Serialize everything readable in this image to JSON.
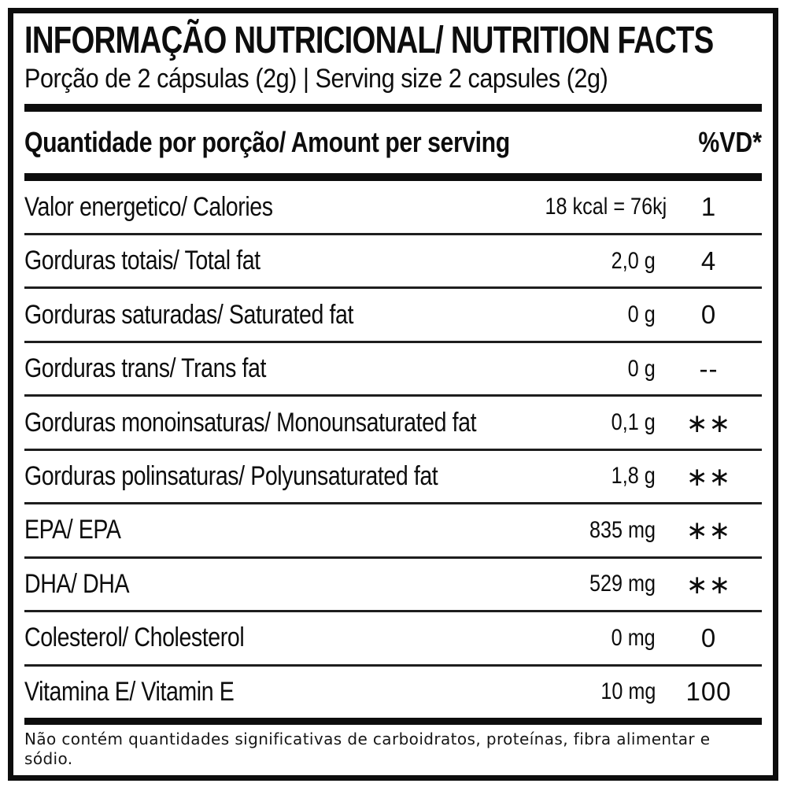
{
  "label": {
    "title": "INFORMAÇÃO NUTRICIONAL/ NUTRITION FACTS",
    "serving_line": "Porção de 2 cápsulas (2g) | Serving size 2 capsules (2g)",
    "columns": {
      "amount_header": "Quantidade por porção/ Amount per serving",
      "dv_header": "%VD*"
    },
    "rows": [
      {
        "name": "Valor energetico/ Calories",
        "amount": "18 kcal = 76kj",
        "dv": "1"
      },
      {
        "name": "Gorduras totais/ Total fat",
        "amount": "2,0 g",
        "dv": "4"
      },
      {
        "name": "Gorduras saturadas/ Saturated fat",
        "amount": "0 g",
        "dv": "0"
      },
      {
        "name": "Gorduras trans/ Trans fat",
        "amount": "0 g",
        "dv": "--"
      },
      {
        "name": "Gorduras monoinsaturas/ Monounsaturated fat",
        "amount": "0,1 g",
        "dv": "∗∗"
      },
      {
        "name": "Gorduras polinsaturas/ Polyunsaturated fat",
        "amount": "1,8 g",
        "dv": "∗∗"
      },
      {
        "name": "EPA/ EPA",
        "amount": "835 mg",
        "dv": "∗∗"
      },
      {
        "name": "DHA/ DHA",
        "amount": "529 mg",
        "dv": "∗∗"
      },
      {
        "name": "Colesterol/ Cholesterol",
        "amount": "0 mg",
        "dv": "0"
      },
      {
        "name": "Vitamina E/ Vitamin E",
        "amount": "10 mg",
        "dv": "100"
      }
    ],
    "footnote": "Não contém quantidades significativas de carboidratos, proteínas, fibra alimentar e sódio.",
    "colors": {
      "ink": "#0d0d0d",
      "background": "#ffffff"
    }
  }
}
